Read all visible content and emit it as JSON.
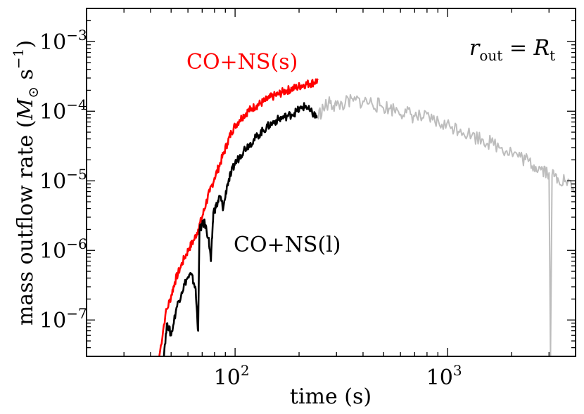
{
  "chart_data": {
    "type": "line",
    "xscale": "log",
    "yscale": "log",
    "xlim": [
      20,
      4000
    ],
    "ylim": [
      3e-08,
      0.003
    ],
    "xlabel": "time (s)",
    "ylabel": {
      "pre": "mass outflow rate (",
      "sym": "M",
      "sub": "⊙",
      "mid": " s",
      "sup": "−1",
      "post": ")"
    },
    "x_tick_labels": [
      {
        "value": 100,
        "base": "10",
        "exp": "2"
      },
      {
        "value": 1000,
        "base": "10",
        "exp": "3"
      }
    ],
    "y_tick_labels": [
      {
        "value": 0.001,
        "base": "10",
        "exp": "−3"
      },
      {
        "value": 0.0001,
        "base": "10",
        "exp": "−4"
      },
      {
        "value": 1e-05,
        "base": "10",
        "exp": "−5"
      },
      {
        "value": 1e-06,
        "base": "10",
        "exp": "−6"
      },
      {
        "value": 1e-07,
        "base": "10",
        "exp": "−7"
      }
    ],
    "annotation": {
      "r": "r",
      "r_sub": "out",
      "eq": " = ",
      "R": "R",
      "R_sub": "t"
    },
    "series": [
      {
        "name": "CO+NS(s)",
        "color": "#ff0000",
        "x": [
          44,
          47,
          50,
          52,
          55,
          58,
          61,
          64,
          67,
          70,
          73,
          76,
          80,
          84,
          88,
          92,
          96,
          100,
          105,
          110,
          115,
          120,
          126,
          132,
          138,
          145,
          152,
          160,
          168,
          176,
          185,
          195,
          205,
          215,
          225,
          235,
          245
        ],
        "y": [
          3e-08,
          1.2e-07,
          2.2e-07,
          3.5e-07,
          5.5e-07,
          8e-07,
          1.1e-06,
          1.4e-06,
          2e-06,
          3e-06,
          4.8e-06,
          7e-06,
          1.1e-05,
          1.6e-05,
          2.4e-05,
          3.5e-05,
          5e-05,
          6.2e-05,
          7.5e-05,
          8.8e-05,
          0.0001,
          0.00011,
          0.00012,
          0.00013,
          0.00014,
          0.000155,
          0.000165,
          0.000175,
          0.00019,
          0.0002,
          0.00021,
          0.00022,
          0.000235,
          0.000245,
          0.00025,
          0.00026,
          0.00028
        ]
      },
      {
        "name": "CO+NS(l)",
        "color": "#000000",
        "x": [
          46,
          48,
          50,
          53,
          56,
          59,
          62,
          65,
          67,
          68,
          70,
          72,
          75,
          77,
          79,
          82,
          85,
          88,
          92,
          96,
          100,
          105,
          110,
          116,
          122,
          128,
          135,
          142,
          150,
          158,
          166,
          175,
          185,
          195,
          205,
          215,
          225,
          235,
          242
        ],
        "y": [
          3e-08,
          9e-08,
          6e-08,
          1.5e-07,
          2.5e-07,
          3.8e-07,
          4.5e-07,
          3e-07,
          7e-08,
          2e-06,
          2.3e-06,
          2.5e-06,
          1.5e-06,
          7e-07,
          3.5e-06,
          4.5e-06,
          6e-06,
          4e-06,
          9e-06,
          1.3e-05,
          1.8e-05,
          2.2e-05,
          2.8e-05,
          3.3e-05,
          3.8e-05,
          4.5e-05,
          5.2e-05,
          6e-05,
          6.8e-05,
          7.5e-05,
          8e-05,
          8.5e-05,
          9e-05,
          0.0001,
          0.00011,
          0.00012,
          0.0001,
          9e-05,
          8e-05
        ]
      },
      {
        "name": "CO+NS(l) extended",
        "color": "#bdbdbd",
        "x": [
          242,
          260,
          280,
          300,
          330,
          360,
          400,
          440,
          480,
          530,
          580,
          640,
          700,
          770,
          850,
          940,
          1050,
          1150,
          1300,
          1450,
          1600,
          1800,
          2000,
          2200,
          2400,
          2600,
          2800,
          3000,
          3050,
          3100,
          3300,
          3600,
          4000
        ],
        "y": [
          8e-05,
          0.00011,
          0.00013,
          0.00012,
          0.00013,
          0.00014,
          0.00014,
          0.00013,
          0.00012,
          0.00011,
          0.000105,
          9.5e-05,
          8.5e-05,
          8e-05,
          7.5e-05,
          6.5e-05,
          6e-05,
          5.5e-05,
          4.5e-05,
          4e-05,
          3.5e-05,
          3e-05,
          2.6e-05,
          2.2e-05,
          1.9e-05,
          1.6e-05,
          1.5e-05,
          1.3e-05,
          3e-08,
          1.2e-05,
          1.1e-05,
          1e-05,
          7e-06
        ]
      }
    ],
    "series_labels": [
      "CO+NS(s)",
      "CO+NS(l)"
    ]
  }
}
